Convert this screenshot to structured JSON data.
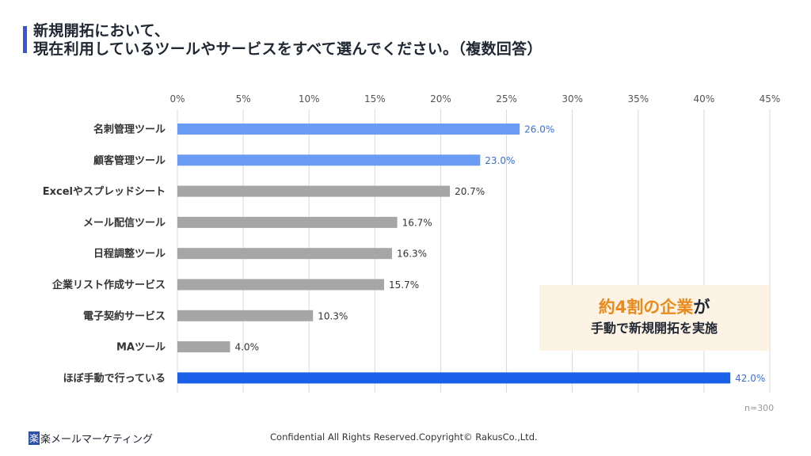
{
  "title": {
    "line1": "新規開拓において、",
    "line2": "現在利用しているツールやサービスをすべて選んでください。（複数回答）"
  },
  "chart_data": {
    "type": "bar",
    "orientation": "horizontal",
    "categories": [
      "名刺管理ツール",
      "顧客管理ツール",
      "Excelやスプレッドシート",
      "メール配信ツール",
      "日程調整ツール",
      "企業リスト作成サービス",
      "電子契約サービス",
      "MAツール",
      "ほぼ手動で行っている"
    ],
    "values": [
      26.0,
      23.0,
      20.7,
      16.7,
      16.3,
      15.7,
      10.3,
      4.0,
      42.0
    ],
    "data_labels": [
      "26.0%",
      "23.0%",
      "20.7%",
      "16.7%",
      "16.3%",
      "15.7%",
      "10.3%",
      "4.0%",
      "42.0%"
    ],
    "bar_colors": [
      "#6b9cf5",
      "#6b9cf5",
      "#a6a6a6",
      "#a6a6a6",
      "#a6a6a6",
      "#a6a6a6",
      "#a6a6a6",
      "#a6a6a6",
      "#1a5fe8"
    ],
    "label_colors": [
      "#3a6fd8",
      "#3a6fd8",
      "#333333",
      "#333333",
      "#333333",
      "#333333",
      "#333333",
      "#333333",
      "#3a6fd8"
    ],
    "xlim": [
      0,
      45
    ],
    "ticks": [
      "0%",
      "5%",
      "10%",
      "15%",
      "20%",
      "25%",
      "30%",
      "35%",
      "40%",
      "45%"
    ],
    "grid": true,
    "axis_position": "top"
  },
  "callout": {
    "highlight": "約4割の企業",
    "rest": "が",
    "line2": "手動で新規開拓を実施"
  },
  "sample_size": "n=300",
  "footer": {
    "logo_mark": "楽",
    "logo_text": "楽メールマーケティング",
    "copyright": "Confidential All Rights Reserved.Copyright© RakusCo.,Ltd."
  }
}
